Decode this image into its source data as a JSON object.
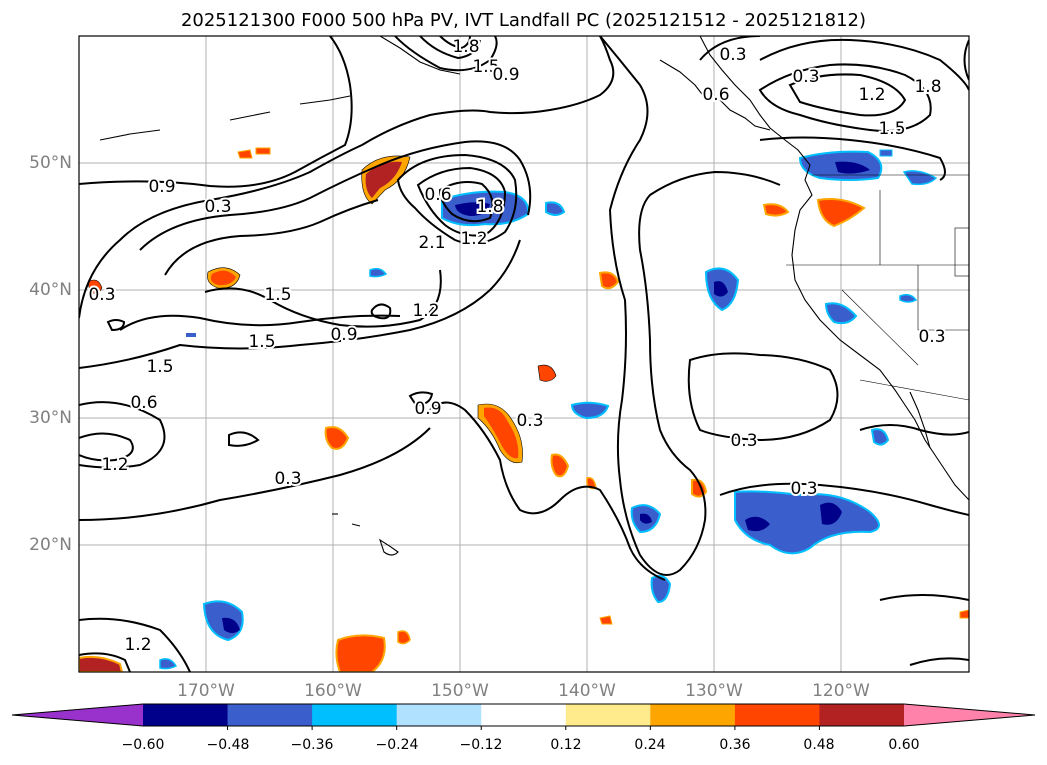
{
  "title": "2025121300 F000 500 hPa PV, IVT Landfall PC (2025121512 - 2025121812)",
  "axes": {
    "lat_labels": [
      "50°N",
      "40°N",
      "30°N",
      "20°N"
    ],
    "lon_labels": [
      "170°W",
      "160°W",
      "150°W",
      "140°W",
      "130°W",
      "120°W"
    ]
  },
  "contour_labels": [
    "1.8",
    "1.5",
    "0.9",
    "0.3",
    "0.6",
    "1.2",
    "1.8",
    "1.5",
    "0.9",
    "0.3",
    "0.6",
    "1.8",
    "2.1",
    "1.2",
    "1.5",
    "1.5",
    "0.9",
    "1.2",
    "1.5",
    "0.6",
    "1.2",
    "0.9",
    "0.3",
    "0.3",
    "0.3",
    "0.3",
    "0.3",
    "1.2",
    "0.3",
    "0.3"
  ],
  "colorbar": {
    "labels": [
      "−0.60",
      "−0.48",
      "−0.36",
      "−0.24",
      "−0.12",
      "0.12",
      "0.24",
      "0.36",
      "0.48",
      "0.60"
    ],
    "colors": [
      "#9932cc",
      "#00008b",
      "#3a5fcd",
      "#00bfff",
      "#b0e2ff",
      "#ffffff",
      "#ffeb8c",
      "#ffa500",
      "#ff4500",
      "#b22222",
      "#ff82ab"
    ]
  }
}
